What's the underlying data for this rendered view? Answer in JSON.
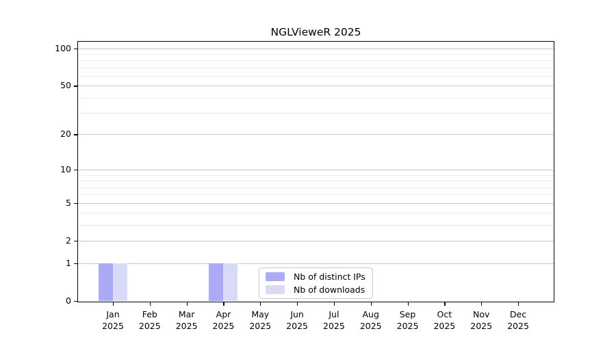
{
  "chart_data": {
    "type": "bar",
    "title": "NGLVieweR 2025",
    "categories": [
      "Jan 2025",
      "Feb 2025",
      "Mar 2025",
      "Apr 2025",
      "May 2025",
      "Jun 2025",
      "Jul 2025",
      "Aug 2025",
      "Sep 2025",
      "Oct 2025",
      "Nov 2025",
      "Dec 2025"
    ],
    "series": [
      {
        "name": "Nb of distinct IPs",
        "color": "#aaaaf5",
        "values": [
          1,
          0,
          0,
          1,
          0,
          0,
          0,
          0,
          0,
          0,
          0,
          0
        ]
      },
      {
        "name": "Nb of downloads",
        "color": "#d9d9f8",
        "values": [
          1,
          0,
          0,
          1,
          0,
          0,
          0,
          0,
          0,
          0,
          0,
          0
        ]
      }
    ],
    "yscale": "log1p",
    "ylim": [
      0,
      113
    ],
    "y_major_ticks": [
      0,
      1,
      2,
      5,
      10,
      20,
      50,
      100
    ],
    "y_minor_ticks": [
      3,
      4,
      6,
      7,
      8,
      9,
      30,
      40,
      60,
      70,
      80,
      90
    ],
    "grid": "horizontal",
    "legend_position": "lower center",
    "xlabel": "",
    "ylabel": ""
  },
  "colors": {
    "background": "#ffffff",
    "axis": "#000000",
    "major_grid": "#c6c6c6",
    "minor_grid": "#ececec",
    "bar_distinct_ips": "#aaaaf5",
    "bar_downloads": "#d9d9f8"
  }
}
